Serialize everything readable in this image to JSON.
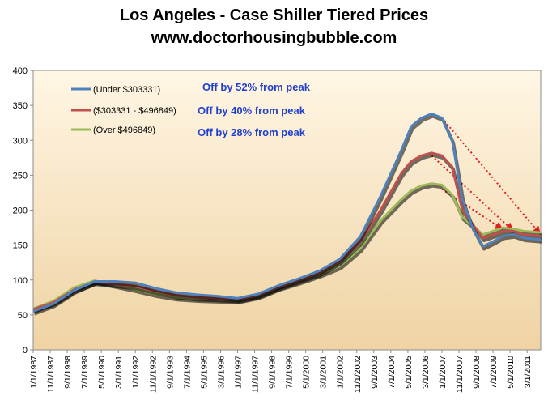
{
  "chart_data": {
    "type": "line",
    "title": "Los Angeles - Case Shiller Tiered Prices",
    "subtitle": "www.doctorhousingbubble.com",
    "xlabel": "",
    "ylabel": "",
    "ylim": [
      0,
      400
    ],
    "yticks": [
      0,
      50,
      100,
      150,
      200,
      250,
      300,
      350,
      400
    ],
    "xlim": [
      "1/1/1987",
      "11/1/2011"
    ],
    "xticks": [
      "1/1/1987",
      "11/1/1987",
      "9/1/1988",
      "7/1/1989",
      "5/1/1990",
      "3/1/1991",
      "1/1/1992",
      "11/1/1992",
      "9/1/1993",
      "7/1/1994",
      "5/1/1995",
      "3/1/1996",
      "1/1/1997",
      "11/1/1997",
      "9/1/1998",
      "7/1/1999",
      "5/1/2000",
      "3/1/2001",
      "1/1/2002",
      "11/1/2002",
      "9/1/2003",
      "7/1/2004",
      "5/1/2005",
      "3/1/2006",
      "1/1/2007",
      "11/1/2007",
      "9/1/2008",
      "7/1/2009",
      "5/1/2010",
      "3/1/2011"
    ],
    "grid": false,
    "legend_position": "top-left",
    "series": [
      {
        "name": "(Under $303331)",
        "color": "#4F81BD",
        "points": [
          [
            "1/1/1987",
            55
          ],
          [
            "1/1/1988",
            66
          ],
          [
            "1/1/1989",
            85
          ],
          [
            "1/1/1990",
            98
          ],
          [
            "1/1/1991",
            98
          ],
          [
            "1/1/1992",
            96
          ],
          [
            "1/1/1993",
            88
          ],
          [
            "1/1/1994",
            82
          ],
          [
            "1/1/1995",
            79
          ],
          [
            "1/1/1996",
            77
          ],
          [
            "1/1/1997",
            74
          ],
          [
            "1/1/1998",
            80
          ],
          [
            "1/1/1999",
            92
          ],
          [
            "1/1/2000",
            102
          ],
          [
            "1/1/2001",
            113
          ],
          [
            "1/1/2002",
            130
          ],
          [
            "1/1/2003",
            162
          ],
          [
            "1/1/2004",
            220
          ],
          [
            "1/1/2005",
            285
          ],
          [
            "7/1/2005",
            320
          ],
          [
            "1/1/2006",
            332
          ],
          [
            "7/1/2006",
            338
          ],
          [
            "1/1/2007",
            332
          ],
          [
            "7/1/2007",
            300
          ],
          [
            "1/1/2008",
            215
          ],
          [
            "7/1/2008",
            175
          ],
          [
            "1/1/2009",
            148
          ],
          [
            "7/1/2009",
            155
          ],
          [
            "1/1/2010",
            163
          ],
          [
            "7/1/2010",
            165
          ],
          [
            "1/1/2011",
            160
          ],
          [
            "11/1/2011",
            158
          ]
        ]
      },
      {
        "name": "($303331 - $496849)",
        "color": "#C0504D",
        "points": [
          [
            "1/1/1987",
            58
          ],
          [
            "1/1/1988",
            68
          ],
          [
            "1/1/1989",
            86
          ],
          [
            "1/1/1990",
            97
          ],
          [
            "1/1/1991",
            94
          ],
          [
            "1/1/1992",
            91
          ],
          [
            "1/1/1993",
            84
          ],
          [
            "1/1/1994",
            78
          ],
          [
            "1/1/1995",
            75
          ],
          [
            "1/1/1996",
            74
          ],
          [
            "1/1/1997",
            72
          ],
          [
            "1/1/1998",
            78
          ],
          [
            "1/1/1999",
            90
          ],
          [
            "1/1/2000",
            100
          ],
          [
            "1/1/2001",
            110
          ],
          [
            "1/1/2002",
            127
          ],
          [
            "1/1/2003",
            155
          ],
          [
            "1/1/2004",
            200
          ],
          [
            "1/1/2005",
            252
          ],
          [
            "7/1/2005",
            270
          ],
          [
            "1/1/2006",
            278
          ],
          [
            "7/1/2006",
            282
          ],
          [
            "1/1/2007",
            278
          ],
          [
            "7/1/2007",
            262
          ],
          [
            "1/1/2008",
            200
          ],
          [
            "7/1/2008",
            180
          ],
          [
            "1/1/2009",
            160
          ],
          [
            "7/1/2009",
            165
          ],
          [
            "1/1/2010",
            170
          ],
          [
            "7/1/2010",
            170
          ],
          [
            "1/1/2011",
            165
          ],
          [
            "11/1/2011",
            163
          ]
        ]
      },
      {
        "name": "(Over $496849)",
        "color": "#9BBB59",
        "points": [
          [
            "1/1/1987",
            59
          ],
          [
            "1/1/1988",
            70
          ],
          [
            "1/1/1989",
            89
          ],
          [
            "1/1/1990",
            99
          ],
          [
            "1/1/1991",
            93
          ],
          [
            "1/1/1992",
            87
          ],
          [
            "1/1/1993",
            80
          ],
          [
            "1/1/1994",
            75
          ],
          [
            "1/1/1995",
            73
          ],
          [
            "1/1/1996",
            72
          ],
          [
            "1/1/1997",
            71
          ],
          [
            "1/1/1998",
            77
          ],
          [
            "1/1/1999",
            89
          ],
          [
            "1/1/2000",
            98
          ],
          [
            "1/1/2001",
            108
          ],
          [
            "1/1/2002",
            120
          ],
          [
            "1/1/2003",
            145
          ],
          [
            "1/1/2004",
            185
          ],
          [
            "1/1/2005",
            215
          ],
          [
            "7/1/2005",
            228
          ],
          [
            "1/1/2006",
            235
          ],
          [
            "7/1/2006",
            238
          ],
          [
            "1/1/2007",
            236
          ],
          [
            "7/1/2007",
            222
          ],
          [
            "1/1/2008",
            190
          ],
          [
            "7/1/2008",
            178
          ],
          [
            "1/1/2009",
            165
          ],
          [
            "7/1/2009",
            170
          ],
          [
            "1/1/2010",
            175
          ],
          [
            "7/1/2010",
            173
          ],
          [
            "1/1/2011",
            170
          ],
          [
            "11/1/2011",
            168
          ]
        ]
      }
    ],
    "annotations": [
      {
        "text": "Off by 52% from peak",
        "color": "#1F3FCF"
      },
      {
        "text": "Off by 40% from peak",
        "color": "#1F3FCF"
      },
      {
        "text": "Off by 28% from peak",
        "color": "#1F3FCF"
      }
    ],
    "arrows": [
      {
        "color": "#E02020",
        "from": [
          "1/1/2007",
          332
        ],
        "to": [
          "11/1/2011",
          165
        ]
      },
      {
        "color": "#E02020",
        "from": [
          "7/1/2006",
          278
        ],
        "to": [
          "7/1/2010",
          170
        ]
      },
      {
        "color": "#E02020",
        "from": [
          "1/1/2007",
          230
        ],
        "to": [
          "1/1/2010",
          172
        ]
      }
    ]
  }
}
